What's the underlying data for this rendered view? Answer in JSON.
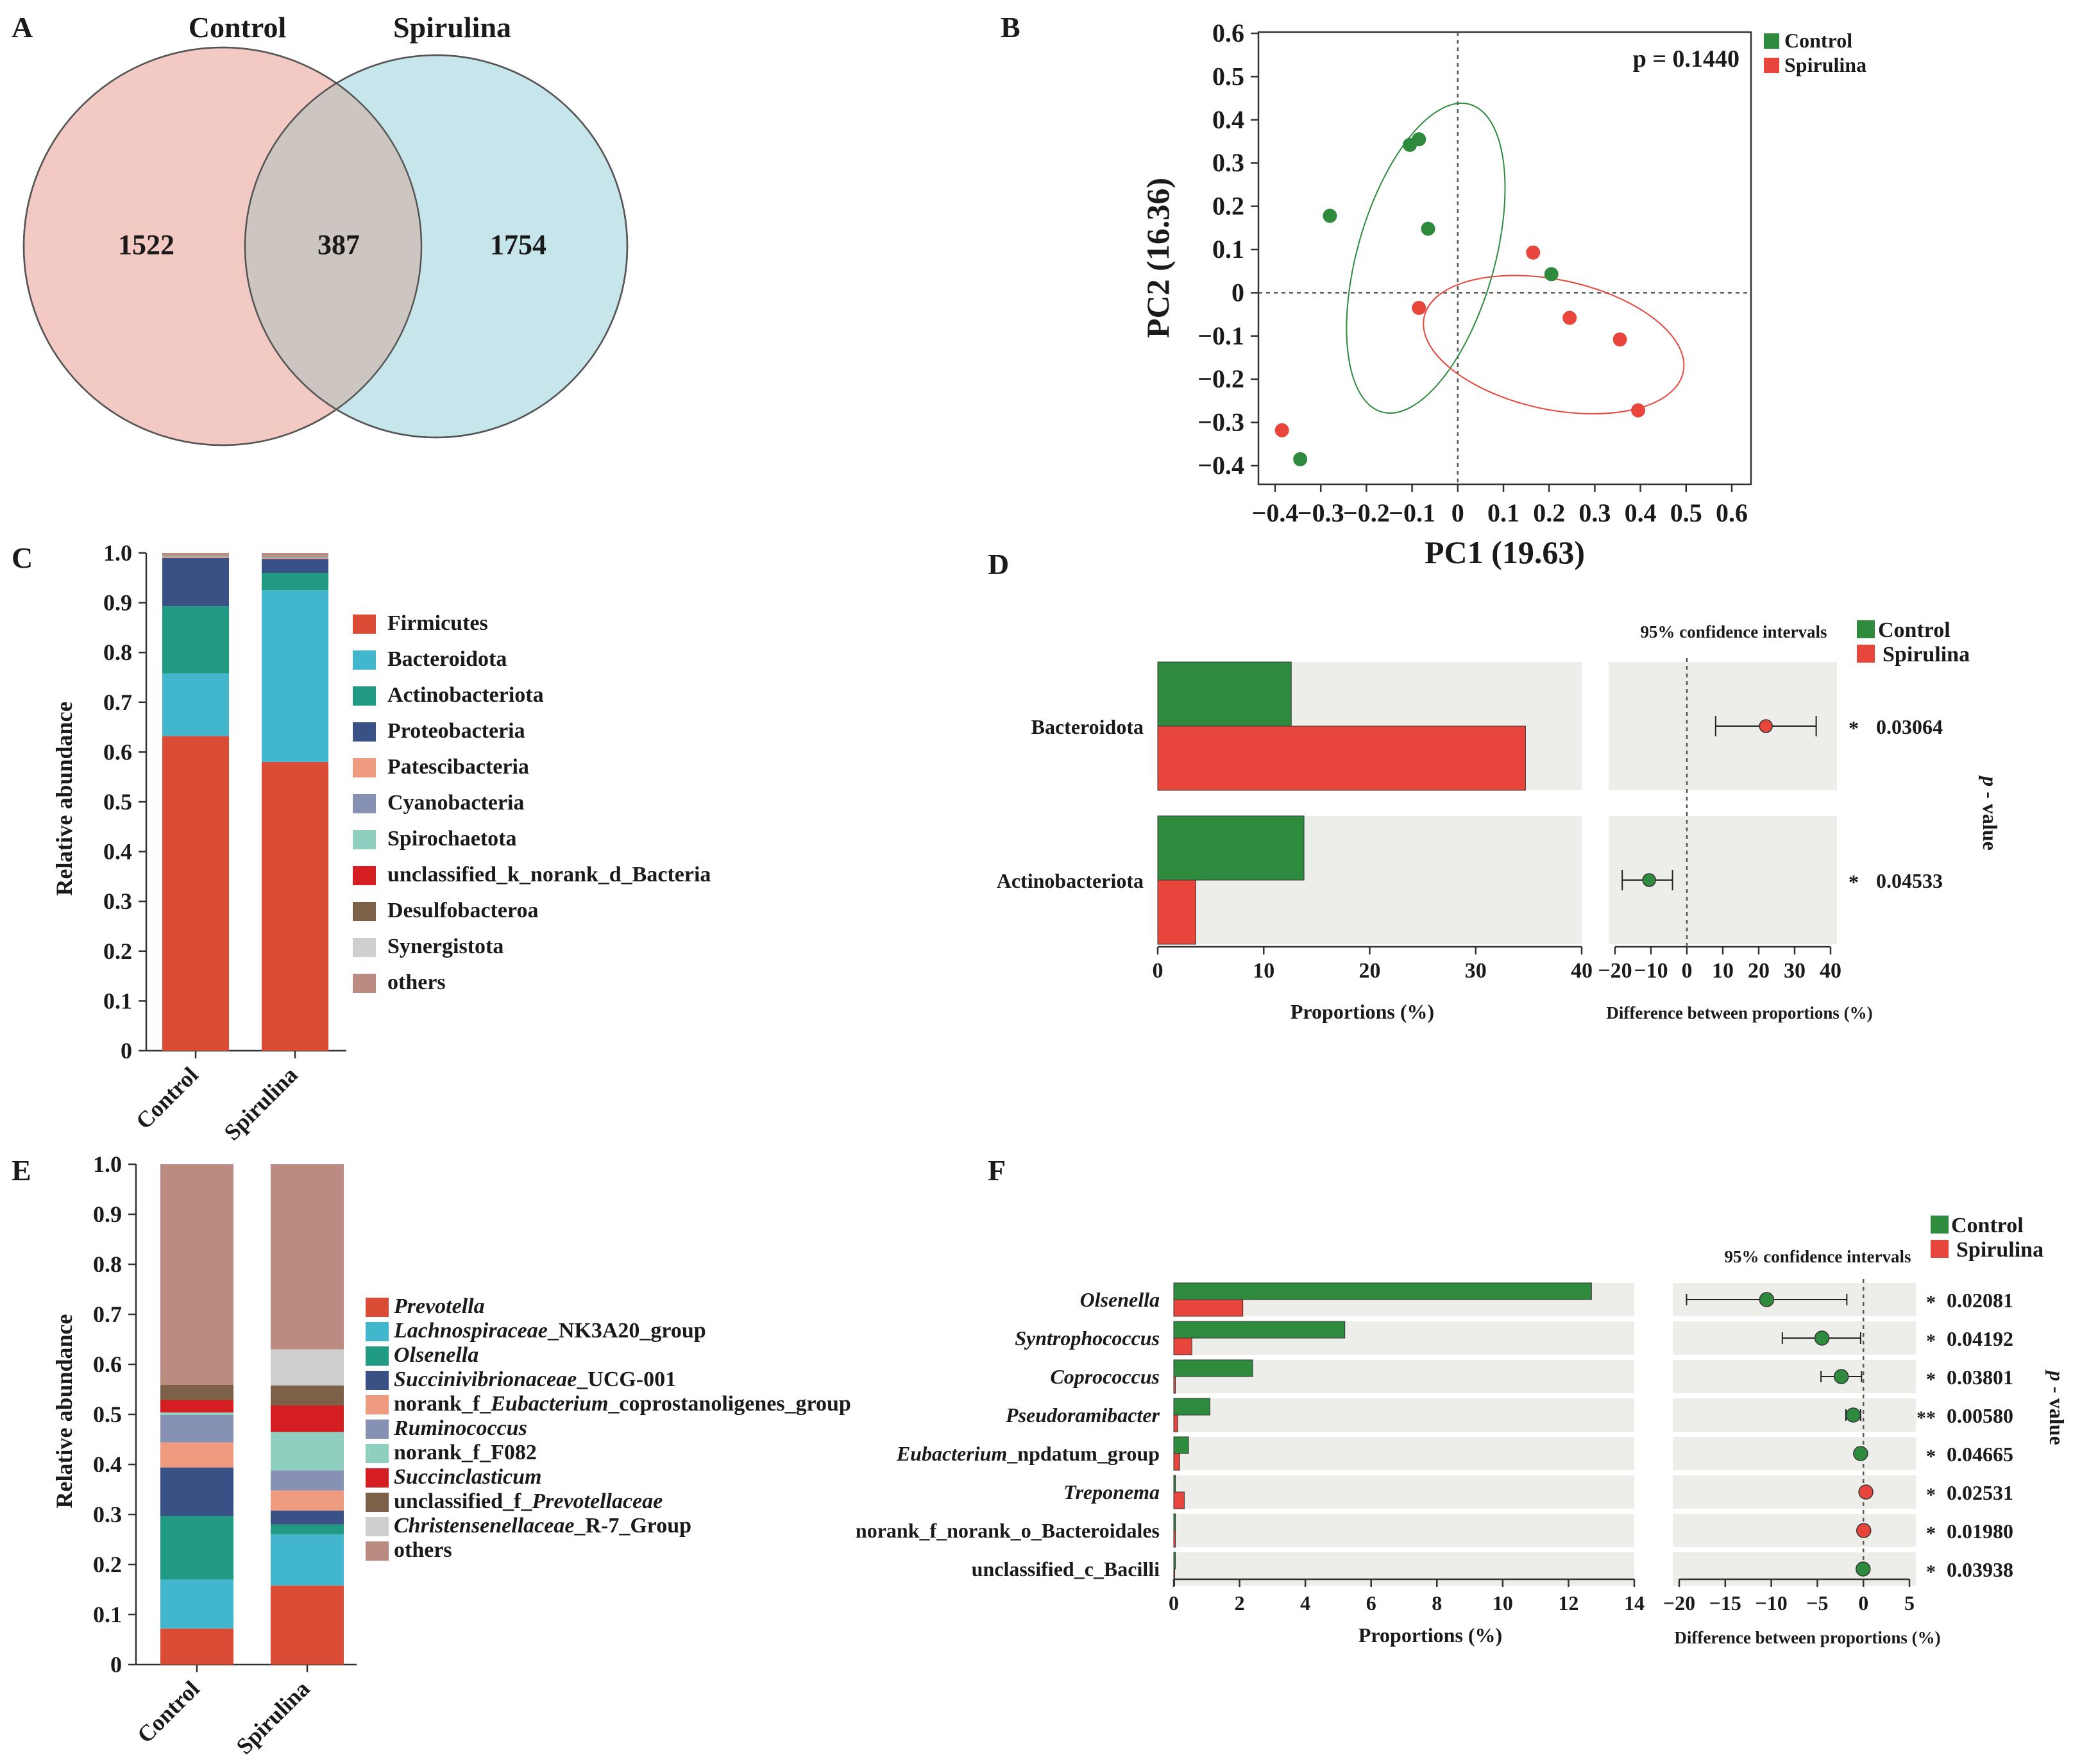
{
  "colors": {
    "control": "#2e8b3e",
    "spirulina": "#e8453c",
    "venn_control": "#f2c9c3",
    "venn_spirulina": "#c6e6ec",
    "venn_overlap": "#cdc6c0",
    "panel_bg": "#ededea",
    "star": "#e0262b"
  },
  "chart_data": [
    {
      "panel": "A",
      "type": "venn",
      "set_labels": [
        "Control",
        "Spirulina"
      ],
      "only_control": "1522",
      "overlap": "387",
      "only_spirulina": "1754"
    },
    {
      "panel": "B",
      "type": "scatter",
      "xlabel": "PC1 (19.63)",
      "ylabel": "PC2 (16.36)",
      "annotation": "p = 0.1440",
      "xlim": [
        -0.4,
        0.6
      ],
      "ylim": [
        -0.4,
        0.6
      ],
      "xticks": [
        -0.4,
        -0.3,
        -0.2,
        -0.1,
        0,
        0.1,
        0.2,
        0.3,
        0.4,
        0.5,
        0.6
      ],
      "xtick_labels": [
        "−0.4",
        "−0.3",
        "−0.2",
        "−0.1",
        "0",
        "0.1",
        "0.2",
        "0.3",
        "0.4",
        "0.5",
        "0.6"
      ],
      "yticks": [
        0.6,
        0.5,
        0.4,
        0.3,
        0.2,
        0.1,
        0,
        -0.1,
        -0.2,
        -0.3,
        -0.4
      ],
      "ytick_labels": [
        "0.6",
        "0.5",
        "0.4",
        "0.3",
        "0.2",
        "0.1",
        "0",
        "−0.1",
        "−0.2",
        "−0.3",
        "−0.4"
      ],
      "legend": [
        "Control",
        "Spirulina"
      ],
      "series": [
        {
          "name": "Control",
          "points": [
            [
              -0.28,
              0.178
            ],
            [
              -0.105,
              0.342
            ],
            [
              -0.085,
              0.355
            ],
            [
              -0.065,
              0.148
            ],
            [
              0.205,
              0.043
            ],
            [
              -0.345,
              -0.385
            ]
          ],
          "ellipse": {
            "cx": -0.07,
            "cy": 0.08,
            "rx": 0.15,
            "ry": 0.37,
            "angle_deg": 16
          }
        },
        {
          "name": "Spirulina",
          "points": [
            [
              0.165,
              0.093
            ],
            [
              -0.085,
              -0.035
            ],
            [
              0.245,
              -0.058
            ],
            [
              0.355,
              -0.108
            ],
            [
              0.395,
              -0.272
            ],
            [
              -0.385,
              -0.318
            ]
          ],
          "ellipse": {
            "cx": 0.21,
            "cy": -0.12,
            "rx": 0.29,
            "ry": 0.15,
            "angle_deg": 12
          }
        }
      ]
    },
    {
      "panel": "C",
      "type": "bar",
      "stacked": true,
      "ylabel": "Relative abundance",
      "ylim": [
        0,
        1
      ],
      "yticks": [
        "0",
        "0.1",
        "0.2",
        "0.3",
        "0.4",
        "0.5",
        "0.6",
        "0.7",
        "0.8",
        "0.9",
        "1.0"
      ],
      "categories": [
        "Control",
        "Spirulina"
      ],
      "series": [
        {
          "name": "Firmicutes",
          "color": "#db4c37",
          "values": [
            0.632,
            0.58
          ]
        },
        {
          "name": "Bacteroidota",
          "color": "#42b6cc",
          "values": [
            0.126,
            0.345
          ]
        },
        {
          "name": "Actinobacteriota",
          "color": "#219a84",
          "values": [
            0.135,
            0.035
          ]
        },
        {
          "name": "Proteobacteria",
          "color": "#3a5186",
          "values": [
            0.097,
            0.028
          ]
        },
        {
          "name": "Patescibacteria",
          "color": "#ef9b80",
          "values": [
            0.002,
            0.002
          ]
        },
        {
          "name": "Cyanobacteria",
          "color": "#8691b3",
          "values": [
            0.001,
            0.001
          ]
        },
        {
          "name": "Spirochaetota",
          "color": "#8fcfbf",
          "values": [
            0.001,
            0.002
          ]
        },
        {
          "name": "unclassified_k_norank_d_Bacteria",
          "color": "#d51e22",
          "values": [
            0.0,
            0.001
          ]
        },
        {
          "name": "Desulfobacteroa",
          "color": "#7d6048",
          "values": [
            0.0,
            0.001
          ]
        },
        {
          "name": "Synergistota",
          "color": "#cfcfcf",
          "values": [
            0.0,
            0.001
          ]
        },
        {
          "name": "others",
          "color": "#bb8a80",
          "values": [
            0.006,
            0.004
          ]
        }
      ]
    },
    {
      "panel": "D",
      "type": "bar",
      "orientation": "horizontal",
      "categories": [
        "Bacteroidota",
        "Actinobacteriota"
      ],
      "series": [
        {
          "name": "Control",
          "values": [
            12.6,
            13.8
          ]
        },
        {
          "name": "Spirulina",
          "values": [
            34.7,
            3.6
          ]
        }
      ],
      "xlabel": "Proportions (%)",
      "xlim": [
        0,
        40
      ],
      "xticks": [
        "0",
        "10",
        "20",
        "30",
        "40"
      ],
      "ci_title": "95% confidence intervals",
      "ci_xlabel": "Difference between proportions (%)",
      "ci_xlim": [
        -20,
        40
      ],
      "ci_xticks": [
        "−20",
        "−10",
        "0",
        "10",
        "20",
        "30",
        "40"
      ],
      "differences": [
        {
          "value": 22,
          "lo": 8,
          "hi": 36,
          "favors": "Spirulina"
        },
        {
          "value": -10.5,
          "lo": -18,
          "hi": -4,
          "favors": "Control"
        }
      ],
      "stars": [
        "*",
        "*"
      ],
      "p_values": [
        "0.03064",
        "0.04533"
      ],
      "p_label_parts": [
        "p",
        " - value"
      ],
      "legend": [
        "Control",
        "Spirulina"
      ]
    },
    {
      "panel": "E",
      "type": "bar",
      "stacked": true,
      "ylabel": "Relative abundance",
      "ylim": [
        0,
        1
      ],
      "yticks": [
        "0",
        "0.1",
        "0.2",
        "0.3",
        "0.4",
        "0.5",
        "0.6",
        "0.7",
        "0.8",
        "0.9",
        "1.0"
      ],
      "categories": [
        "Control",
        "Spirulina"
      ],
      "series": [
        {
          "name": "Prevotella",
          "italic_name": "Prevotella",
          "plain_suffix": "",
          "plain_prefix": "",
          "color": "#db4c37",
          "values": [
            0.072,
            0.158
          ]
        },
        {
          "name": "Lachnospiraceae_NK3A20_group",
          "plain_prefix": "",
          "italic_name": "Lachnospiraceae",
          "plain_suffix": "_NK3A20_group",
          "color": "#42b6cc",
          "values": [
            0.098,
            0.102
          ]
        },
        {
          "name": "Olsenella",
          "plain_prefix": "",
          "italic_name": "Olsenella",
          "plain_suffix": "",
          "color": "#219a84",
          "values": [
            0.127,
            0.02
          ]
        },
        {
          "name": "Succinivibrionaceae_UCG-001",
          "plain_prefix": "",
          "italic_name": "Succinivibrionaceae",
          "plain_suffix": "_UCG-001",
          "color": "#3a5186",
          "values": [
            0.097,
            0.028
          ]
        },
        {
          "name": "norank_f_Eubacterium_coprostanoligenes_group",
          "plain_prefix": "norank_f_",
          "italic_name": "Eubacterium",
          "plain_suffix": "_coprostanoligenes_group",
          "color": "#ef9b80",
          "values": [
            0.05,
            0.04
          ]
        },
        {
          "name": "Ruminococcus",
          "plain_prefix": "",
          "italic_name": "Ruminococcus",
          "plain_suffix": "",
          "color": "#8691b3",
          "values": [
            0.055,
            0.04
          ]
        },
        {
          "name": "norank_f_F082",
          "plain_prefix": "norank_f_F082",
          "italic_name": "",
          "plain_suffix": "",
          "color": "#8fcfbf",
          "values": [
            0.005,
            0.077
          ]
        },
        {
          "name": "Succinclasticum",
          "plain_prefix": "",
          "italic_name": "Succinclasticum",
          "plain_suffix": "",
          "color": "#d51e22",
          "values": [
            0.025,
            0.053
          ]
        },
        {
          "name": "unclassified_f_Prevotellaceae",
          "plain_prefix": "unclassified_f_",
          "italic_name": "Prevotellaceae",
          "plain_suffix": "",
          "color": "#7d6048",
          "values": [
            0.03,
            0.04
          ]
        },
        {
          "name": "Christensenellaceae_R-7_Group",
          "plain_prefix": "",
          "italic_name": "Christensenellaceae",
          "plain_suffix": "_R-7_Group",
          "color": "#cfcfcf",
          "values": [
            0.0,
            0.072
          ]
        },
        {
          "name": "others",
          "plain_prefix": "others",
          "italic_name": "",
          "plain_suffix": "",
          "color": "#bb8a80",
          "values": [
            0.441,
            0.37
          ]
        }
      ]
    },
    {
      "panel": "F",
      "type": "bar",
      "orientation": "horizontal",
      "categories": [
        {
          "name": "Olsenella",
          "plain_prefix": "",
          "italic_name": "Olsenella",
          "plain_suffix": ""
        },
        {
          "name": "Syntrophococcus",
          "plain_prefix": "",
          "italic_name": "Syntrophococcus",
          "plain_suffix": ""
        },
        {
          "name": "Coprococcus",
          "plain_prefix": "",
          "italic_name": "Coprococcus",
          "plain_suffix": ""
        },
        {
          "name": "Pseudoramibacter",
          "plain_prefix": "",
          "italic_name": "Pseudoramibacter",
          "plain_suffix": ""
        },
        {
          "name": "Eubacterium_npdatum_group",
          "plain_prefix": "",
          "italic_name": "Eubacterium",
          "plain_suffix": "_npdatum_group"
        },
        {
          "name": "Treponema",
          "plain_prefix": "",
          "italic_name": "Treponema",
          "plain_suffix": ""
        },
        {
          "name": "norank_f_norank_o_Bacteroidales",
          "plain_prefix": "norank_f_norank_o_Bacteroidales",
          "italic_name": "",
          "plain_suffix": ""
        },
        {
          "name": "unclassified_c_Bacilli",
          "plain_prefix": "unclassified_c_Bacilli",
          "italic_name": "",
          "plain_suffix": ""
        }
      ],
      "series": [
        {
          "name": "Control",
          "values": [
            12.7,
            5.2,
            2.4,
            1.1,
            0.45,
            0.05,
            0.05,
            0.05
          ]
        },
        {
          "name": "Spirulina",
          "values": [
            2.1,
            0.55,
            0.05,
            0.12,
            0.18,
            0.32,
            0.05,
            0.03
          ]
        }
      ],
      "xlabel": "Proportions (%)",
      "xlim": [
        0,
        14
      ],
      "xticks": [
        "0",
        "2",
        "4",
        "6",
        "8",
        "10",
        "12",
        "14"
      ],
      "ci_title": "95% confidence intervals",
      "ci_xlabel": "Difference between proportions (%)",
      "ci_xlim": [
        -20,
        5
      ],
      "ci_xticks": [
        "−20",
        "−15",
        "−10",
        "−5",
        "0",
        "5"
      ],
      "differences": [
        {
          "value": -10.5,
          "lo": -19.2,
          "hi": -1.8,
          "favors": "Control"
        },
        {
          "value": -4.5,
          "lo": -8.8,
          "hi": -0.3,
          "favors": "Control"
        },
        {
          "value": -2.4,
          "lo": -4.6,
          "hi": -0.2,
          "favors": "Control"
        },
        {
          "value": -1.1,
          "lo": -1.9,
          "hi": -0.3,
          "favors": "Control"
        },
        {
          "value": -0.3,
          "lo": -0.6,
          "hi": 0.0,
          "favors": "Control"
        },
        {
          "value": 0.27,
          "lo": 0.05,
          "hi": 0.5,
          "favors": "Spirulina"
        },
        {
          "value": 0.04,
          "lo": 0.01,
          "hi": 0.08,
          "favors": "Spirulina"
        },
        {
          "value": -0.03,
          "lo": -0.06,
          "hi": 0.0,
          "favors": "Control"
        }
      ],
      "stars": [
        "*",
        "*",
        "*",
        "**",
        "*",
        "*",
        "*",
        "*"
      ],
      "p_values": [
        "0.02081",
        "0.04192",
        "0.03801",
        "0.00580",
        "0.04665",
        "0.02531",
        "0.01980",
        "0.03938"
      ],
      "p_label_parts": [
        "p",
        " - value"
      ],
      "legend": [
        "Control",
        "Spirulina"
      ]
    }
  ],
  "panel_letters": [
    "A",
    "B",
    "C",
    "D",
    "E",
    "F"
  ]
}
